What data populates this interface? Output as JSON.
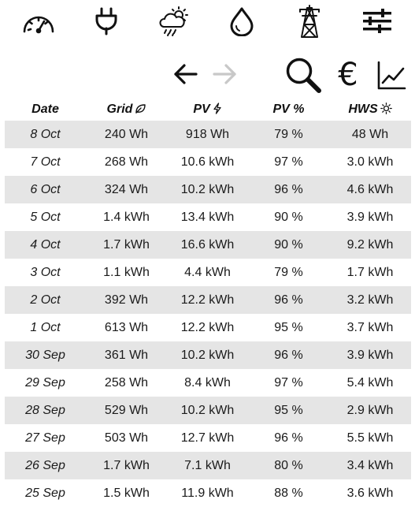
{
  "nav": {
    "items": [
      {
        "icon": "speedometer-icon"
      },
      {
        "icon": "plug-icon"
      },
      {
        "icon": "weather-icon"
      },
      {
        "icon": "water-drop-icon"
      },
      {
        "icon": "power-pylon-icon"
      },
      {
        "icon": "sliders-icon"
      }
    ]
  },
  "toolbar": {
    "back_icon": "arrow-left-icon",
    "forward_icon": "arrow-right-icon",
    "forward_disabled": true,
    "search_icon": "search-icon",
    "currency_symbol": "€",
    "chart_icon": "line-chart-icon"
  },
  "table": {
    "headers": {
      "date": "Date",
      "grid": "Grid",
      "pv": "PV",
      "pv_pct": "PV %",
      "hws": "HWS"
    },
    "header_icons": {
      "grid": "leaf-icon",
      "pv": "lightning-icon",
      "hws": "sun-icon"
    },
    "rows": [
      {
        "date": "8 Oct",
        "grid": "240 Wh",
        "pv": "918 Wh",
        "pv_pct": "79 %",
        "hws": "48 Wh"
      },
      {
        "date": "7 Oct",
        "grid": "268 Wh",
        "pv": "10.6 kWh",
        "pv_pct": "97 %",
        "hws": "3.0 kWh"
      },
      {
        "date": "6 Oct",
        "grid": "324 Wh",
        "pv": "10.2 kWh",
        "pv_pct": "96 %",
        "hws": "4.6 kWh"
      },
      {
        "date": "5 Oct",
        "grid": "1.4 kWh",
        "pv": "13.4 kWh",
        "pv_pct": "90 %",
        "hws": "3.9 kWh"
      },
      {
        "date": "4 Oct",
        "grid": "1.7 kWh",
        "pv": "16.6 kWh",
        "pv_pct": "90 %",
        "hws": "9.2 kWh"
      },
      {
        "date": "3 Oct",
        "grid": "1.1 kWh",
        "pv": "4.4 kWh",
        "pv_pct": "79 %",
        "hws": "1.7 kWh"
      },
      {
        "date": "2 Oct",
        "grid": "392 Wh",
        "pv": "12.2 kWh",
        "pv_pct": "96 %",
        "hws": "3.2 kWh"
      },
      {
        "date": "1 Oct",
        "grid": "613 Wh",
        "pv": "12.2 kWh",
        "pv_pct": "95 %",
        "hws": "3.7 kWh"
      },
      {
        "date": "30 Sep",
        "grid": "361 Wh",
        "pv": "10.2 kWh",
        "pv_pct": "96 %",
        "hws": "3.9 kWh"
      },
      {
        "date": "29 Sep",
        "grid": "258 Wh",
        "pv": "8.4 kWh",
        "pv_pct": "97 %",
        "hws": "5.4 kWh"
      },
      {
        "date": "28 Sep",
        "grid": "529 Wh",
        "pv": "10.2 kWh",
        "pv_pct": "95 %",
        "hws": "2.9 kWh"
      },
      {
        "date": "27 Sep",
        "grid": "503 Wh",
        "pv": "12.7 kWh",
        "pv_pct": "96 %",
        "hws": "5.5 kWh"
      },
      {
        "date": "26 Sep",
        "grid": "1.7 kWh",
        "pv": "7.1 kWh",
        "pv_pct": "80 %",
        "hws": "3.4 kWh"
      },
      {
        "date": "25 Sep",
        "grid": "1.5 kWh",
        "pv": "11.9 kWh",
        "pv_pct": "88 %",
        "hws": "3.6 kWh"
      }
    ]
  }
}
